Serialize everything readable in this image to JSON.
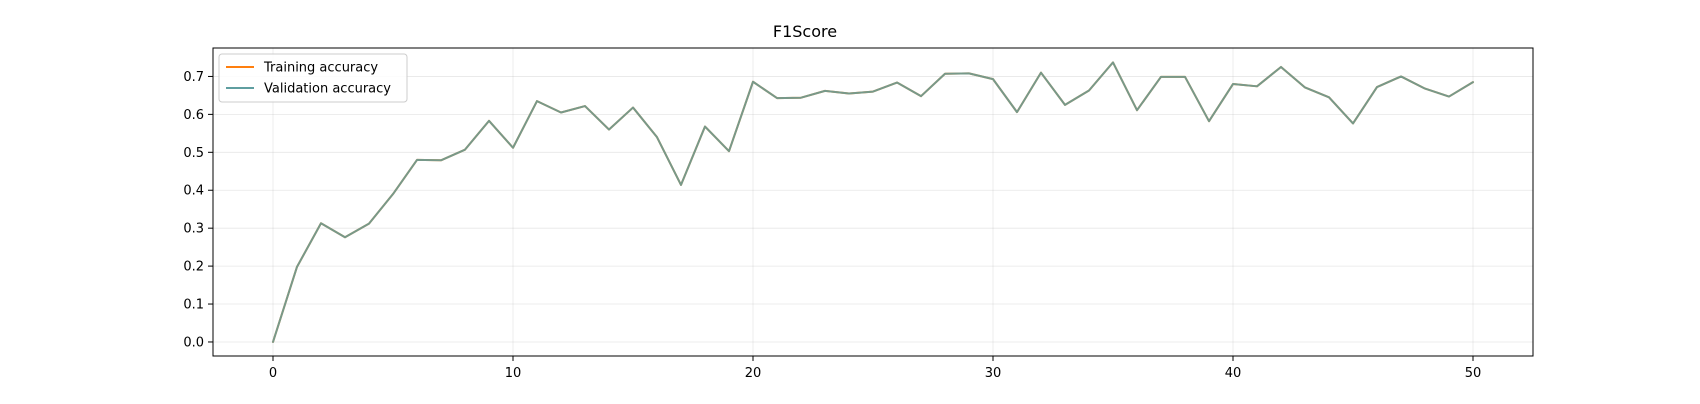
{
  "chart_data": {
    "type": "line",
    "title": "F1Score",
    "xlabel": "",
    "ylabel": "",
    "xlim": [
      -2.5,
      52.5
    ],
    "ylim": [
      -0.037,
      0.775
    ],
    "xticks": [
      0,
      10,
      20,
      30,
      40,
      50
    ],
    "yticks": [
      0.0,
      0.1,
      0.2,
      0.3,
      0.4,
      0.5,
      0.6,
      0.7
    ],
    "grid": true,
    "legend_position": "top-left",
    "x": [
      0,
      1,
      2,
      3,
      4,
      5,
      6,
      7,
      8,
      9,
      10,
      11,
      12,
      13,
      14,
      15,
      16,
      17,
      18,
      19,
      20,
      21,
      22,
      23,
      24,
      25,
      26,
      27,
      28,
      29,
      30,
      31,
      32,
      33,
      34,
      35,
      36,
      37,
      38,
      39,
      40,
      41,
      42,
      43,
      44,
      45,
      46,
      47,
      48,
      49,
      50
    ],
    "series": [
      {
        "name": "Training accuracy",
        "color": "#ff7f0e",
        "values": [
          0.0,
          0.198,
          0.313,
          0.276,
          0.312,
          0.39,
          0.48,
          0.479,
          0.507,
          0.583,
          0.512,
          0.635,
          0.605,
          0.622,
          0.56,
          0.618,
          0.54,
          0.414,
          0.568,
          0.503,
          0.686,
          0.643,
          0.644,
          0.662,
          0.655,
          0.66,
          0.684,
          0.648,
          0.707,
          0.708,
          0.693,
          0.606,
          0.71,
          0.625,
          0.663,
          0.737,
          0.611,
          0.699,
          0.699,
          0.582,
          0.68,
          0.674,
          0.725,
          0.671,
          0.645,
          0.576,
          0.672,
          0.7,
          0.668,
          0.647,
          0.685
        ]
      },
      {
        "name": "Validation accuracy",
        "color": "#5f9ea0",
        "values": [
          0.0,
          0.198,
          0.313,
          0.276,
          0.312,
          0.39,
          0.48,
          0.479,
          0.507,
          0.583,
          0.512,
          0.635,
          0.605,
          0.622,
          0.56,
          0.618,
          0.54,
          0.414,
          0.568,
          0.503,
          0.686,
          0.643,
          0.644,
          0.662,
          0.655,
          0.66,
          0.684,
          0.648,
          0.707,
          0.708,
          0.693,
          0.606,
          0.71,
          0.625,
          0.663,
          0.737,
          0.611,
          0.699,
          0.699,
          0.582,
          0.68,
          0.674,
          0.725,
          0.671,
          0.645,
          0.576,
          0.672,
          0.7,
          0.668,
          0.647,
          0.685
        ]
      }
    ]
  }
}
